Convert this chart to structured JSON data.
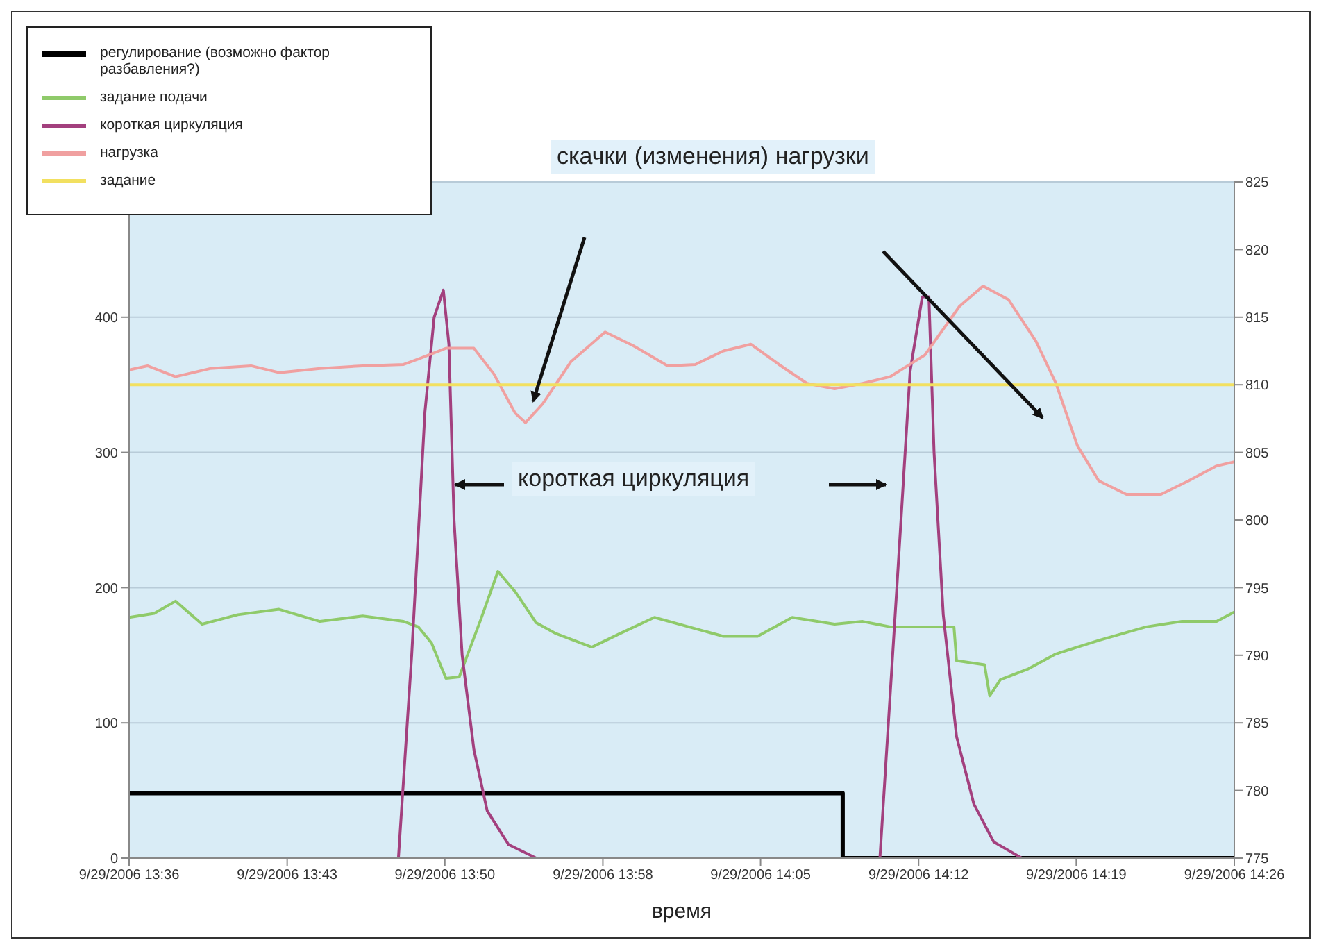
{
  "chart_data": {
    "type": "line",
    "xlabel": "время",
    "xlim": [
      "2006-09-29T13:36:00",
      "2006-09-29T14:26:00"
    ],
    "xticks": [
      {
        "value": "2006-09-29T13:36:00",
        "label": "9/29/2006 13:36"
      },
      {
        "value": "2006-09-29T13:43:09",
        "label": "9/29/2006 13:43"
      },
      {
        "value": "2006-09-29T13:50:17",
        "label": "9/29/2006 13:50"
      },
      {
        "value": "2006-09-29T13:57:26",
        "label": "9/29/2006 13:58"
      },
      {
        "value": "2006-09-29T14:04:34",
        "label": "9/29/2006 14:05"
      },
      {
        "value": "2006-09-29T14:11:43",
        "label": "9/29/2006 14:12"
      },
      {
        "value": "2006-09-29T14:18:51",
        "label": "9/29/2006 14:19"
      },
      {
        "value": "2006-09-29T14:26:00",
        "label": "9/29/2006 14:26"
      }
    ],
    "ylim": [
      0,
      500
    ],
    "yticks": [
      0,
      100,
      200,
      300,
      400
    ],
    "y2lim": [
      775,
      825
    ],
    "y2ticks": [
      775,
      780,
      785,
      790,
      795,
      800,
      805,
      810,
      815,
      820,
      825
    ],
    "grid": "y",
    "legend": "top left",
    "marker": "none",
    "annotations": [
      "скачки (изменения) нагрузки",
      "короткая циркуляция"
    ],
    "series": [
      {
        "name": "регулирование (возможно фактор разбавления?)",
        "color": "#000000",
        "x": [
          "2006-09-29T13:36:00",
          "2006-09-29T14:08:17",
          "2006-09-29T14:08:17",
          "2006-09-29T14:26:00"
        ],
        "values": [
          48,
          48,
          0,
          0
        ]
      },
      {
        "name": "задание подачи",
        "color": "#8fca6a",
        "x": [
          "2006-09-29T13:36:00",
          "2006-09-29T13:37:08",
          "2006-09-29T13:38:06",
          "2006-09-29T13:39:18",
          "2006-09-29T13:40:55",
          "2006-09-29T13:42:47",
          "2006-09-29T13:44:38",
          "2006-09-29T13:46:34",
          "2006-09-29T13:48:25",
          "2006-09-29T13:49:05",
          "2006-09-29T13:49:41",
          "2006-09-29T13:50:20",
          "2006-09-29T13:50:56",
          "2006-09-29T13:51:54",
          "2006-09-29T13:52:41",
          "2006-09-29T13:53:28",
          "2006-09-29T13:54:25",
          "2006-09-29T13:55:19",
          "2006-09-29T13:56:56",
          "2006-09-29T13:58:12",
          "2006-09-29T13:59:46",
          "2006-09-29T14:01:19",
          "2006-09-29T14:02:53",
          "2006-09-29T14:04:26",
          "2006-09-29T14:06:00",
          "2006-09-29T14:07:55",
          "2006-09-29T14:09:11",
          "2006-09-29T14:10:26",
          "2006-09-29T14:12:00",
          "2006-09-29T14:13:19",
          "2006-09-29T14:13:26",
          "2006-09-29T14:14:42",
          "2006-09-29T14:14:56",
          "2006-09-29T14:15:25",
          "2006-09-29T14:16:41",
          "2006-09-29T14:17:56",
          "2006-09-29T14:19:52",
          "2006-09-29T14:22:01",
          "2006-09-29T14:23:38",
          "2006-09-29T14:25:12",
          "2006-09-29T14:26:00"
        ],
        "values": [
          178,
          181,
          190,
          173,
          180,
          184,
          175,
          179,
          175,
          171,
          159,
          133,
          134,
          176,
          212,
          197,
          174,
          166,
          156,
          166,
          178,
          171,
          164,
          164,
          178,
          173,
          175,
          171,
          171,
          171,
          146,
          143,
          120,
          132,
          140,
          151,
          161,
          171,
          175,
          175,
          182
        ]
      },
      {
        "name": "короткая циркуляция",
        "color": "#a3407e",
        "x": [
          "2006-09-29T13:36:00",
          "2006-09-29T13:48:11",
          "2006-09-29T13:48:47",
          "2006-09-29T13:49:23",
          "2006-09-29T13:49:48",
          "2006-09-29T13:50:13",
          "2006-09-29T13:50:28",
          "2006-09-29T13:50:42",
          "2006-09-29T13:51:04",
          "2006-09-29T13:51:36",
          "2006-09-29T13:52:12",
          "2006-09-29T13:53:10",
          "2006-09-29T13:54:25",
          "2006-09-29T14:09:58",
          "2006-09-29T14:10:44",
          "2006-09-29T14:11:20",
          "2006-09-29T14:11:53",
          "2006-09-29T14:12:11",
          "2006-09-29T14:12:25",
          "2006-09-29T14:12:50",
          "2006-09-29T14:13:26",
          "2006-09-29T14:14:13",
          "2006-09-29T14:15:07",
          "2006-09-29T14:16:23",
          "2006-09-29T14:26:00"
        ],
        "values": [
          0,
          0,
          150,
          330,
          400,
          420,
          380,
          250,
          150,
          80,
          35,
          10,
          0,
          0,
          200,
          360,
          415,
          415,
          300,
          180,
          90,
          40,
          12,
          0,
          0
        ]
      },
      {
        "name": "нагрузка",
        "color": "#f0a0a0",
        "axis": "y2",
        "x": [
          "2006-09-29T13:36:00",
          "2006-09-29T13:36:50",
          "2006-09-29T13:38:06",
          "2006-09-29T13:39:40",
          "2006-09-29T13:41:31",
          "2006-09-29T13:42:47",
          "2006-09-29T13:44:38",
          "2006-09-29T13:46:34",
          "2006-09-29T13:48:25",
          "2006-09-29T13:49:05",
          "2006-09-29T13:50:20",
          "2006-09-29T13:51:36",
          "2006-09-29T13:52:30",
          "2006-09-29T13:53:28",
          "2006-09-29T13:53:56",
          "2006-09-29T13:54:43",
          "2006-09-29T13:55:59",
          "2006-09-29T13:57:32",
          "2006-09-29T13:58:48",
          "2006-09-29T14:00:22",
          "2006-09-29T14:01:37",
          "2006-09-29T14:02:53",
          "2006-09-29T14:04:08",
          "2006-09-29T14:05:24",
          "2006-09-29T14:06:40",
          "2006-09-29T14:07:55",
          "2006-09-29T14:09:11",
          "2006-09-29T14:10:26",
          "2006-09-29T14:12:00",
          "2006-09-29T14:13:34",
          "2006-09-29T14:14:38",
          "2006-09-29T14:15:47",
          "2006-09-29T14:17:02",
          "2006-09-29T14:17:56",
          "2006-09-29T14:18:54",
          "2006-09-29T14:19:52",
          "2006-09-29T14:21:07",
          "2006-09-29T14:22:41",
          "2006-09-29T14:23:56",
          "2006-09-29T14:25:12",
          "2006-09-29T14:26:00"
        ],
        "values": [
          811.1,
          811.4,
          810.6,
          811.2,
          811.4,
          810.9,
          811.2,
          811.4,
          811.5,
          811.9,
          812.7,
          812.7,
          810.8,
          807.9,
          807.2,
          808.6,
          811.7,
          813.9,
          812.9,
          811.4,
          811.5,
          812.5,
          813,
          811.5,
          810.1,
          809.7,
          810.1,
          810.6,
          812.2,
          815.8,
          817.3,
          816.3,
          813.2,
          810.1,
          805.5,
          802.9,
          801.9,
          801.9,
          802.9,
          804,
          804.3
        ]
      },
      {
        "name": "задание",
        "color": "#f2e060",
        "axis": "y2",
        "x": [
          "2006-09-29T13:36:00",
          "2006-09-29T14:26:00"
        ],
        "values": [
          810,
          810
        ]
      }
    ]
  }
}
